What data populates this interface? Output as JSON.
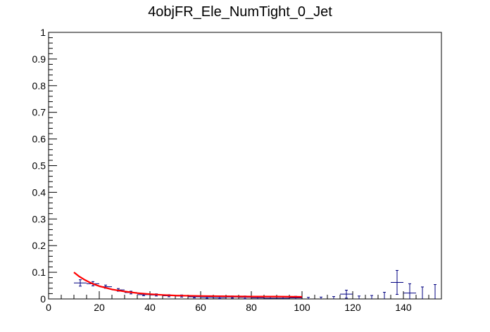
{
  "chart_data": {
    "type": "scatter",
    "title": "4objFR_Ele_NumTight_0_Jet",
    "xlabel": "",
    "ylabel": "",
    "xlim": [
      0,
      155
    ],
    "ylim": [
      0,
      1
    ],
    "xticks": [
      0,
      20,
      40,
      60,
      80,
      100,
      120,
      140
    ],
    "yticks": [
      0,
      0.1,
      0.2,
      0.3,
      0.4,
      0.5,
      0.6,
      0.7,
      0.8,
      0.9,
      1
    ],
    "xtick_labels": [
      "0",
      "20",
      "40",
      "60",
      "80",
      "100",
      "120",
      "140"
    ],
    "ytick_labels": [
      "0",
      "0.1",
      "0.2",
      "0.3",
      "0.4",
      "0.5",
      "0.6",
      "0.7",
      "0.8",
      "0.9",
      "1"
    ],
    "grid": false,
    "series": [
      {
        "kind": "points_with_errors",
        "color": "#000080",
        "points": [
          {
            "x": 12.5,
            "y": 0.06,
            "xerr": 2.5,
            "yerr": 0.012
          },
          {
            "x": 17.5,
            "y": 0.057,
            "xerr": 2.5,
            "yerr": 0.008
          },
          {
            "x": 22.5,
            "y": 0.046,
            "xerr": 2.5,
            "yerr": 0.006
          },
          {
            "x": 27.5,
            "y": 0.034,
            "xerr": 2.5,
            "yerr": 0.005
          },
          {
            "x": 32.5,
            "y": 0.024,
            "xerr": 2.5,
            "yerr": 0.005
          },
          {
            "x": 37.5,
            "y": 0.016,
            "xerr": 2.5,
            "yerr": 0.004
          },
          {
            "x": 42.5,
            "y": 0.015,
            "xerr": 2.5,
            "yerr": 0.004
          },
          {
            "x": 47.5,
            "y": 0.012,
            "xerr": 2.5,
            "yerr": 0.004
          },
          {
            "x": 52.5,
            "y": 0.011,
            "xerr": 2.5,
            "yerr": 0.004
          },
          {
            "x": 57.5,
            "y": 0.008,
            "xerr": 2.5,
            "yerr": 0.004
          },
          {
            "x": 62.5,
            "y": 0.006,
            "xerr": 2.5,
            "yerr": 0.004
          },
          {
            "x": 67.5,
            "y": 0.005,
            "xerr": 2.5,
            "yerr": 0.004
          },
          {
            "x": 72.5,
            "y": 0.007,
            "xerr": 2.5,
            "yerr": 0.004
          },
          {
            "x": 77.5,
            "y": 0.006,
            "xerr": 2.5,
            "yerr": 0.005
          },
          {
            "x": 82.5,
            "y": 0.004,
            "xerr": 2.5,
            "yerr": 0.005
          },
          {
            "x": 87.5,
            "y": 0.003,
            "xerr": 2.5,
            "yerr": 0.005
          },
          {
            "x": 92.5,
            "y": 0.003,
            "xerr": 2.5,
            "yerr": 0.006
          },
          {
            "x": 97.5,
            "y": 0.004,
            "xerr": 2.5,
            "yerr": 0.006
          },
          {
            "x": 102.5,
            "y": 0.0,
            "xerr": 0,
            "yerr": 0.006
          },
          {
            "x": 107.5,
            "y": 0.0,
            "xerr": 0,
            "yerr": 0.007
          },
          {
            "x": 112.5,
            "y": 0.0,
            "xerr": 0,
            "yerr": 0.009
          },
          {
            "x": 117.5,
            "y": 0.018,
            "xerr": 2.5,
            "yerr": 0.015
          },
          {
            "x": 122.5,
            "y": 0.0,
            "xerr": 0,
            "yerr": 0.011
          },
          {
            "x": 127.5,
            "y": 0.0,
            "xerr": 0,
            "yerr": 0.013
          },
          {
            "x": 132.5,
            "y": 0.0,
            "xerr": 0,
            "yerr": 0.025
          },
          {
            "x": 137.5,
            "y": 0.062,
            "xerr": 2.5,
            "yerr": 0.045
          },
          {
            "x": 142.5,
            "y": 0.022,
            "xerr": 2.5,
            "yerr": 0.035
          },
          {
            "x": 147.5,
            "y": 0.0,
            "xerr": 0,
            "yerr": 0.045
          },
          {
            "x": 152.5,
            "y": 0.0,
            "xerr": 0,
            "yerr": 0.054
          }
        ]
      },
      {
        "kind": "fit_curve",
        "color": "#ff0000",
        "points": [
          {
            "x": 10,
            "y": 0.1
          },
          {
            "x": 12,
            "y": 0.085
          },
          {
            "x": 14,
            "y": 0.073
          },
          {
            "x": 16,
            "y": 0.063
          },
          {
            "x": 18,
            "y": 0.055
          },
          {
            "x": 20,
            "y": 0.048
          },
          {
            "x": 25,
            "y": 0.036
          },
          {
            "x": 30,
            "y": 0.028
          },
          {
            "x": 35,
            "y": 0.022
          },
          {
            "x": 40,
            "y": 0.018
          },
          {
            "x": 45,
            "y": 0.015
          },
          {
            "x": 50,
            "y": 0.013
          },
          {
            "x": 60,
            "y": 0.011
          },
          {
            "x": 70,
            "y": 0.01
          },
          {
            "x": 80,
            "y": 0.009
          },
          {
            "x": 90,
            "y": 0.009
          },
          {
            "x": 100,
            "y": 0.008
          }
        ]
      }
    ]
  }
}
